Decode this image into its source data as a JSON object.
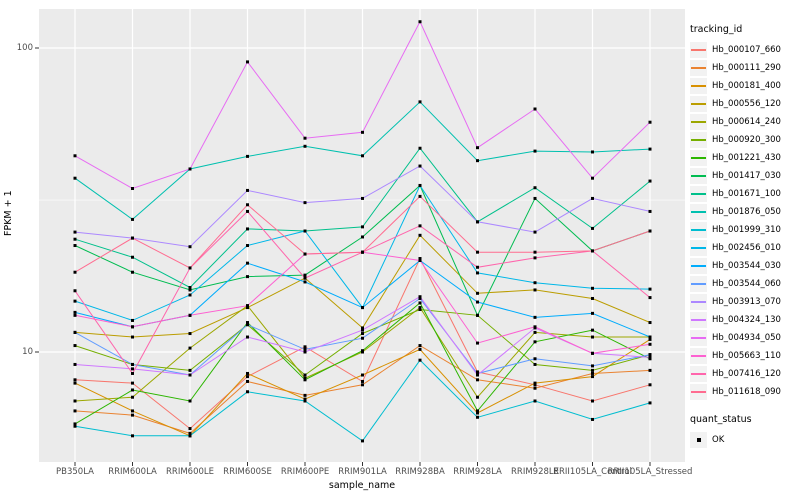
{
  "figure": {
    "background": "#FFFFFF",
    "panel_background": "#EBEBEB",
    "gridline_color": "#FFFFFF",
    "tick_text_color": "#4D4D4D",
    "axis_title_color": "#000000",
    "legend": {
      "tracking_title": "tracking_id",
      "quant_title": "quant_status",
      "quant_label": "OK",
      "key_background": "#F2F2F2",
      "quant_marker": "black-square",
      "quant_marker_color": "#000000"
    }
  },
  "chart_data": {
    "type": "line",
    "title": "",
    "xlabel": "sample_name",
    "ylabel": "FPKM + 1",
    "y_scale": "log10",
    "y_ticks": [
      100,
      10
    ],
    "y_minor_ticks": [
      31.6
    ],
    "ylim": [
      4.5,
      135
    ],
    "grid": true,
    "legend_position": "right",
    "marker": "black-square (quant_status = OK at every point)",
    "categories": [
      "PB350LA",
      "RRIM600LA",
      "RRIM600LE",
      "RRIM600SE",
      "RRIM600PE",
      "RRIM901LA",
      "RRIM928BA",
      "RRIM928LA",
      "RRIM928LE",
      "RRII105LA_Control",
      "RRII105LA_Stressed"
    ],
    "series": [
      {
        "name": "Hb_000107_660",
        "color": "#F8766D",
        "values": [
          8.1,
          7.9,
          5.6,
          8.3,
          10.4,
          8.0,
          20.3,
          8.6,
          7.8,
          6.9,
          7.8
        ]
      },
      {
        "name": "Hb_000111_290",
        "color": "#EA8331",
        "values": [
          6.4,
          6.2,
          5.4,
          8.0,
          7.2,
          7.8,
          10.5,
          8.1,
          7.6,
          8.5,
          8.7
        ]
      },
      {
        "name": "Hb_000181_400",
        "color": "#D89000",
        "values": [
          7.9,
          6.4,
          5.3,
          8.5,
          7.0,
          8.4,
          10.2,
          6.3,
          7.9,
          8.3,
          11.0
        ]
      },
      {
        "name": "Hb_000556_120",
        "color": "#BB9D00",
        "values": [
          11.6,
          11.2,
          11.5,
          14.0,
          17.5,
          12.0,
          24.2,
          15.6,
          16.0,
          15.0,
          12.5
        ]
      },
      {
        "name": "Hb_000614_240",
        "color": "#9CA700",
        "values": [
          6.9,
          7.1,
          10.3,
          14.2,
          8.2,
          10.0,
          14.0,
          7.1,
          11.6,
          11.2,
          11.2
        ]
      },
      {
        "name": "Hb_000920_300",
        "color": "#75AF00",
        "values": [
          10.5,
          9.1,
          8.7,
          12.3,
          8.4,
          11.5,
          13.8,
          13.2,
          9.1,
          8.7,
          9.8
        ]
      },
      {
        "name": "Hb_001221_430",
        "color": "#2CB600",
        "values": [
          5.8,
          7.5,
          6.9,
          12.5,
          8.1,
          10.1,
          14.5,
          6.4,
          10.8,
          11.8,
          9.5
        ]
      },
      {
        "name": "Hb_001417_030",
        "color": "#00BC51",
        "values": [
          22.4,
          18.3,
          16.0,
          17.7,
          17.9,
          23.9,
          35.3,
          13.2,
          32.0,
          21.5,
          25.0
        ]
      },
      {
        "name": "Hb_001671_100",
        "color": "#00C08B",
        "values": [
          23.5,
          20.5,
          16.3,
          25.4,
          25.0,
          25.8,
          46.8,
          26.8,
          34.7,
          25.5,
          36.5
        ]
      },
      {
        "name": "Hb_001876_050",
        "color": "#00C0AF",
        "values": [
          37.3,
          27.3,
          40.0,
          44.0,
          47.5,
          44.2,
          66.5,
          42.6,
          45.8,
          45.5,
          46.5
        ]
      },
      {
        "name": "Hb_001999_310",
        "color": "#00BDD0",
        "values": [
          5.7,
          5.3,
          5.3,
          7.4,
          6.9,
          5.1,
          9.4,
          6.1,
          6.9,
          6.0,
          6.8
        ]
      },
      {
        "name": "Hb_002456_010",
        "color": "#00B7E8",
        "values": [
          14.7,
          12.7,
          15.4,
          22.4,
          25.0,
          14.0,
          35.3,
          18.2,
          16.9,
          16.2,
          16.1
        ]
      },
      {
        "name": "Hb_003544_030",
        "color": "#00ACFC",
        "values": [
          13.5,
          12.1,
          13.2,
          19.6,
          17.0,
          14.0,
          20.0,
          14.6,
          13.0,
          13.4,
          11.2
        ]
      },
      {
        "name": "Hb_003544_060",
        "color": "#619CFF",
        "values": [
          11.6,
          9.1,
          8.4,
          12.3,
          10.2,
          11.1,
          15.0,
          8.5,
          9.5,
          9.0,
          9.8
        ]
      },
      {
        "name": "Hb_003913_070",
        "color": "#AC88FF",
        "values": [
          24.8,
          23.7,
          22.2,
          34.0,
          31.0,
          32.0,
          40.9,
          26.8,
          24.8,
          32.0,
          29.0
        ]
      },
      {
        "name": "Hb_004324_130",
        "color": "#CF78FF",
        "values": [
          9.1,
          8.8,
          8.4,
          11.2,
          10.0,
          11.8,
          15.2,
          8.4,
          12.0,
          9.9,
          9.6
        ]
      },
      {
        "name": "Hb_004934_050",
        "color": "#E76BF3",
        "values": [
          44.2,
          34.5,
          40.0,
          90.0,
          50.5,
          52.8,
          122.0,
          47.0,
          63.0,
          37.3,
          57.0
        ]
      },
      {
        "name": "Hb_005663_110",
        "color": "#FD61D1",
        "values": [
          13.2,
          12.1,
          13.2,
          14.2,
          21.0,
          21.3,
          20.0,
          10.7,
          12.1,
          9.9,
          10.6
        ]
      },
      {
        "name": "Hb_007416_120",
        "color": "#FF65AC",
        "values": [
          15.9,
          8.5,
          18.9,
          29.0,
          17.5,
          21.3,
          26.0,
          19.0,
          20.4,
          21.5,
          15.1
        ]
      },
      {
        "name": "Hb_011618_090",
        "color": "#FF6C90",
        "values": [
          18.3,
          23.7,
          18.9,
          30.5,
          21.0,
          21.3,
          32.5,
          21.3,
          21.3,
          21.5,
          25.0
        ]
      }
    ]
  }
}
